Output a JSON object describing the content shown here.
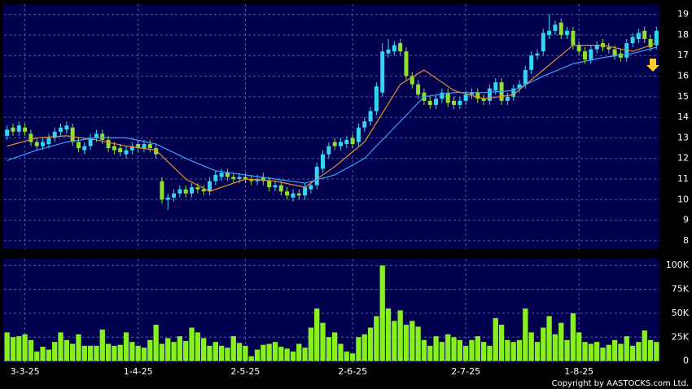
{
  "chart_data": [
    {
      "type": "candlestick",
      "up_color": "#33d6f0",
      "down_color": "#8ee02c",
      "open": [
        13.1,
        13.5,
        13.3,
        13.5,
        13.2,
        12.8,
        12.6,
        12.7,
        13.0,
        13.3,
        13.4,
        13.5,
        12.8,
        12.4,
        12.6,
        13.0,
        13.2,
        12.9,
        12.6,
        12.5,
        12.2,
        12.4,
        12.7,
        12.5,
        12.7,
        12.5,
        10.9,
        10.0,
        10.1,
        10.3,
        10.5,
        10.3,
        10.6,
        10.5,
        10.4,
        10.9,
        11.1,
        11.3,
        11.1,
        11.0,
        11.1,
        11.0,
        10.9,
        11.1,
        10.9,
        10.6,
        10.7,
        10.4,
        10.1,
        10.3,
        10.2,
        10.5,
        10.7,
        11.5,
        12.2,
        12.8,
        12.6,
        12.7,
        13.0,
        12.8,
        13.5,
        13.8,
        14.3,
        15.2,
        17.1,
        17.2,
        17.6,
        17.2,
        16.0,
        15.6,
        15.2,
        14.8,
        14.6,
        14.9,
        15.2,
        14.8,
        14.6,
        14.8,
        15.1,
        15.2,
        14.9,
        14.8,
        15.3,
        15.7,
        14.8,
        15.0,
        15.4,
        15.6,
        16.3,
        17.0,
        17.2,
        18.0,
        18.2,
        18.6,
        18.0,
        18.2,
        17.5,
        17.2,
        16.8,
        17.3,
        17.6,
        17.4,
        17.3,
        17.1,
        16.9,
        17.6,
        17.8,
        18.2,
        17.8,
        17.5
      ],
      "high": [
        13.6,
        13.7,
        13.8,
        13.7,
        13.4,
        13.0,
        13.0,
        13.2,
        13.5,
        13.7,
        13.8,
        13.7,
        13.0,
        12.8,
        13.2,
        13.4,
        13.4,
        13.1,
        12.8,
        12.7,
        12.6,
        12.8,
        12.9,
        12.9,
        12.9,
        12.7,
        11.1,
        10.3,
        10.5,
        10.7,
        10.7,
        10.8,
        10.8,
        10.7,
        11.1,
        11.4,
        11.5,
        11.5,
        11.3,
        11.3,
        11.3,
        11.2,
        11.2,
        11.3,
        11.1,
        10.9,
        10.9,
        10.6,
        10.5,
        10.5,
        10.8,
        10.9,
        11.8,
        12.4,
        12.8,
        13.0,
        13.0,
        13.1,
        13.2,
        13.7,
        14.0,
        14.5,
        15.7,
        17.6,
        17.8,
        17.7,
        17.8,
        17.4,
        16.2,
        15.8,
        15.4,
        15.0,
        15.1,
        15.4,
        15.4,
        15.0,
        15.0,
        15.3,
        15.4,
        15.4,
        15.1,
        15.6,
        15.9,
        15.9,
        15.2,
        15.6,
        15.8,
        16.5,
        17.2,
        17.3,
        18.3,
        19.0,
        18.7,
        18.8,
        18.4,
        18.4,
        17.7,
        17.4,
        17.5,
        17.7,
        17.8,
        17.6,
        17.5,
        17.3,
        17.8,
        18.1,
        18.3,
        18.4,
        18.0,
        18.4
      ],
      "low": [
        12.9,
        13.1,
        13.1,
        13.1,
        12.6,
        12.4,
        12.4,
        12.5,
        12.8,
        13.1,
        13.2,
        12.6,
        12.3,
        12.2,
        12.4,
        12.8,
        12.7,
        12.3,
        12.2,
        12.1,
        12.0,
        12.2,
        12.3,
        12.3,
        12.3,
        12.0,
        9.8,
        9.5,
        9.9,
        10.1,
        10.1,
        10.1,
        10.3,
        10.2,
        10.2,
        10.7,
        10.9,
        10.9,
        10.8,
        10.8,
        10.8,
        10.7,
        10.7,
        10.7,
        10.4,
        10.4,
        10.2,
        10.0,
        9.9,
        10.0,
        10.0,
        10.3,
        10.5,
        11.3,
        12.0,
        12.4,
        12.4,
        12.5,
        12.5,
        12.6,
        13.3,
        13.6,
        14.1,
        15.0,
        16.9,
        17.0,
        17.0,
        15.8,
        15.4,
        14.9,
        14.6,
        14.4,
        14.4,
        14.7,
        14.5,
        14.4,
        14.4,
        14.6,
        14.9,
        14.7,
        14.6,
        14.6,
        15.1,
        14.6,
        14.6,
        14.8,
        15.2,
        15.4,
        16.1,
        16.8,
        17.0,
        17.8,
        18.0,
        17.8,
        17.8,
        17.3,
        17.0,
        16.6,
        16.6,
        17.1,
        17.2,
        17.1,
        16.8,
        16.7,
        16.7,
        17.4,
        17.6,
        17.6,
        17.2,
        17.3
      ],
      "close": [
        13.4,
        13.3,
        13.6,
        13.3,
        12.8,
        12.6,
        12.8,
        13.0,
        13.3,
        13.5,
        13.6,
        12.8,
        12.5,
        12.6,
        13.0,
        13.2,
        12.9,
        12.5,
        12.4,
        12.3,
        12.4,
        12.6,
        12.5,
        12.7,
        12.5,
        12.2,
        10.0,
        10.1,
        10.3,
        10.5,
        10.3,
        10.6,
        10.5,
        10.4,
        10.9,
        11.2,
        11.3,
        11.1,
        11.0,
        11.1,
        11.0,
        10.9,
        11.0,
        10.9,
        10.6,
        10.7,
        10.4,
        10.2,
        10.3,
        10.2,
        10.6,
        10.7,
        11.6,
        12.2,
        12.6,
        12.6,
        12.8,
        12.9,
        12.7,
        13.5,
        13.8,
        14.3,
        15.5,
        17.2,
        17.3,
        17.5,
        17.2,
        16.0,
        15.6,
        15.1,
        14.8,
        14.6,
        14.9,
        15.2,
        14.7,
        14.6,
        14.8,
        15.1,
        15.2,
        14.9,
        14.8,
        15.4,
        15.7,
        14.8,
        15.0,
        15.4,
        15.6,
        16.3,
        17.0,
        17.1,
        18.1,
        18.2,
        18.5,
        18.0,
        18.2,
        17.5,
        17.2,
        16.8,
        17.3,
        17.5,
        17.4,
        17.3,
        17.0,
        16.9,
        17.6,
        17.9,
        18.1,
        17.8,
        17.4,
        18.2
      ],
      "series": [
        {
          "color": "#e8902a",
          "x": [
            0,
            5,
            10,
            15,
            20,
            25,
            30,
            34,
            40,
            45,
            50,
            55,
            60,
            63,
            66,
            70,
            75,
            80,
            85,
            90,
            95,
            100,
            105,
            109
          ],
          "values": [
            12.6,
            13.0,
            13.1,
            12.9,
            12.6,
            12.4,
            11.0,
            10.4,
            11.0,
            10.9,
            10.6,
            11.6,
            12.8,
            14.2,
            15.6,
            16.3,
            15.3,
            14.9,
            15.1,
            16.3,
            17.5,
            17.5,
            17.2,
            17.6
          ]
        },
        {
          "color": "#3aa0ff",
          "x": [
            0,
            5,
            10,
            15,
            20,
            25,
            30,
            35,
            40,
            45,
            50,
            55,
            60,
            65,
            70,
            75,
            80,
            85,
            90,
            95,
            100,
            105,
            109
          ],
          "values": [
            11.9,
            12.4,
            12.8,
            13.0,
            13.0,
            12.7,
            12.0,
            11.4,
            11.2,
            11.0,
            10.8,
            11.2,
            12.0,
            13.5,
            15.0,
            15.2,
            15.2,
            15.3,
            16.0,
            16.6,
            16.9,
            17.1,
            17.4
          ]
        }
      ],
      "ylim": [
        7.6,
        19.5
      ],
      "yticks": [
        8,
        9,
        10,
        11,
        12,
        13,
        14,
        15,
        16,
        17,
        18,
        19
      ],
      "grid": true
    },
    {
      "type": "bar",
      "color": "#88f01c",
      "values": [
        30000,
        25000,
        26000,
        28000,
        22000,
        10000,
        15000,
        12000,
        20000,
        30000,
        22000,
        18000,
        28000,
        16000,
        16000,
        16000,
        33000,
        18000,
        16000,
        17000,
        30000,
        20000,
        16000,
        14000,
        22000,
        38000,
        18000,
        24000,
        20000,
        26000,
        21000,
        35000,
        30000,
        24000,
        16000,
        20000,
        16000,
        14000,
        26000,
        19000,
        16000,
        5000,
        12000,
        17000,
        18000,
        20000,
        15000,
        13000,
        10000,
        18000,
        14000,
        35000,
        55000,
        40000,
        25000,
        30000,
        18000,
        10000,
        8000,
        25000,
        28000,
        35000,
        47000,
        100000,
        55000,
        42000,
        53000,
        38000,
        42000,
        36000,
        22000,
        16000,
        26000,
        20000,
        28000,
        25000,
        22000,
        16000,
        22000,
        26000,
        20000,
        16000,
        45000,
        38000,
        22000,
        20000,
        22000,
        55000,
        30000,
        20000,
        35000,
        47000,
        28000,
        40000,
        22000,
        50000,
        30000,
        20000,
        18000,
        20000,
        14000,
        17000,
        22000,
        18000,
        26000,
        16000,
        20000,
        32000,
        22000,
        20000
      ],
      "ylim": [
        -2000,
        107000
      ],
      "yticks": [
        0,
        {
          "value": 25000,
          "label": "25K"
        },
        {
          "value": 50000,
          "label": "50K"
        },
        {
          "value": 75000,
          "label": "75K"
        },
        {
          "value": 100000,
          "label": "100K"
        }
      ],
      "xticks": [
        {
          "value": 3,
          "label": "3-3-25"
        },
        {
          "value": 22,
          "label": "1-4-25"
        },
        {
          "value": 40,
          "label": "2-5-25"
        },
        {
          "value": 58,
          "label": "2-6-25"
        },
        {
          "value": 77,
          "label": "2-7-25"
        },
        {
          "value": 96,
          "label": "1-8-25"
        }
      ],
      "grid": true
    }
  ],
  "credit": "Copyright by AASTOCKS.com Ltd."
}
